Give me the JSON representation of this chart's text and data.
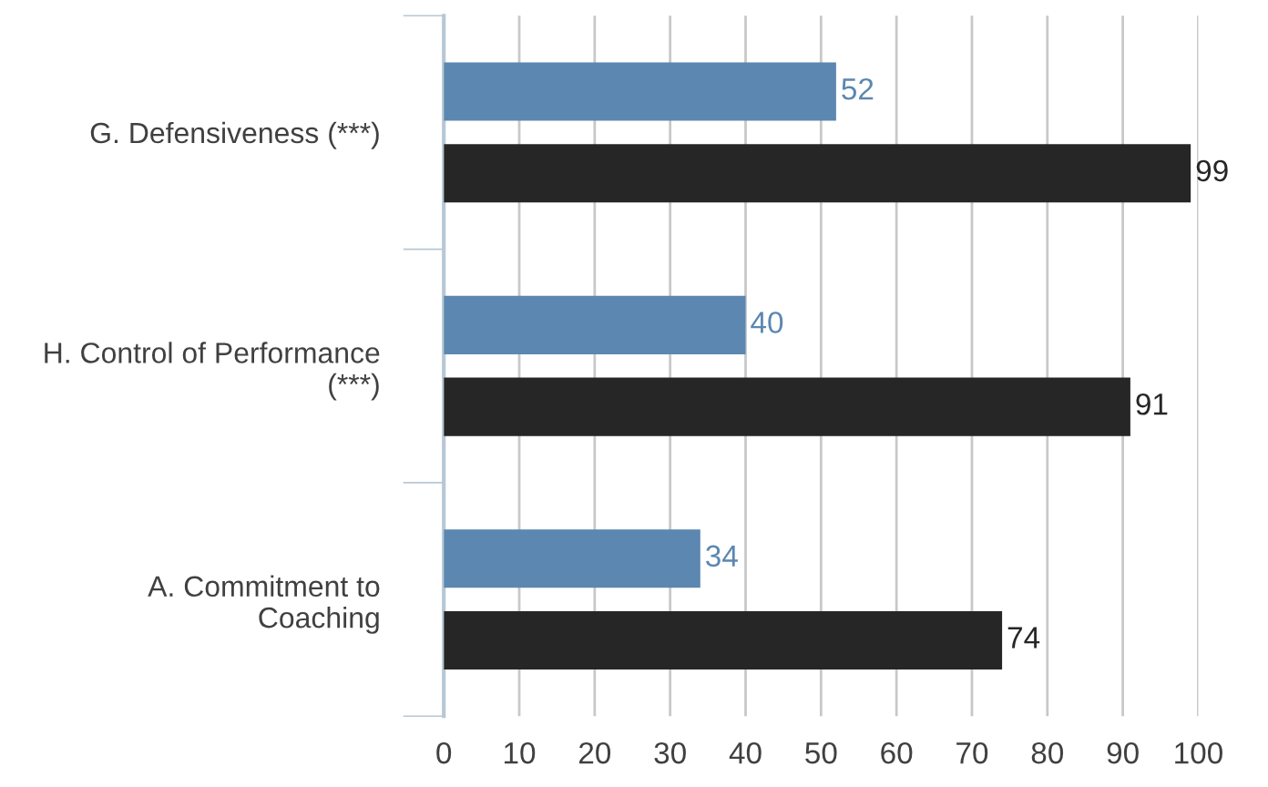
{
  "chart_data": {
    "type": "bar",
    "orientation": "horizontal",
    "categories": [
      "G. Defensiveness (***)",
      "H. Control of Performance\n(***)",
      "A. Commitment to\nCoaching"
    ],
    "series": [
      {
        "color": "#5b87b0",
        "values": [
          52,
          40,
          34
        ]
      },
      {
        "color": "#262626",
        "values": [
          99,
          91,
          74
        ]
      }
    ],
    "xlim": [
      0,
      100
    ],
    "xticks": [
      0,
      10,
      20,
      30,
      40,
      50,
      60,
      70,
      80,
      90,
      100
    ],
    "grid": "x",
    "data_labels": true,
    "legend": false
  }
}
